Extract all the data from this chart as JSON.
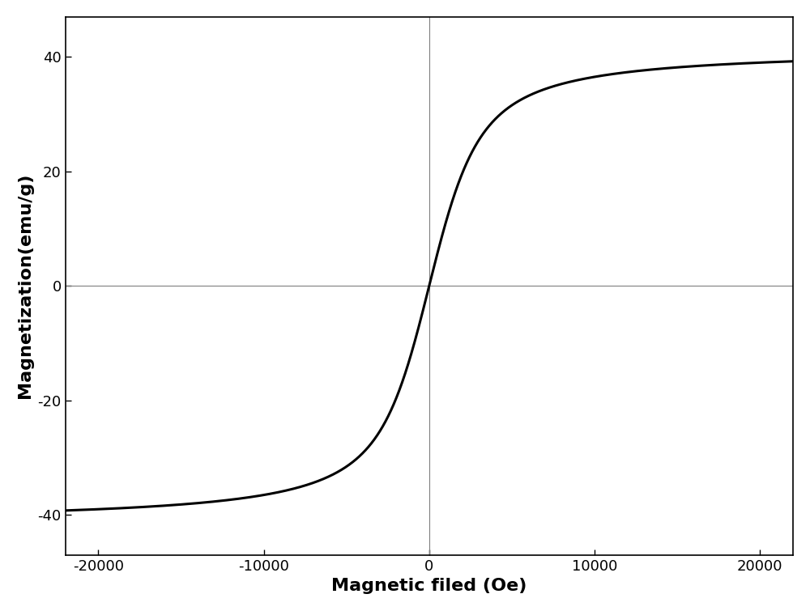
{
  "xlabel": "Magnetic filed (Oe)",
  "ylabel": "Magnetization(emu/g)",
  "xlim": [
    -22000,
    22000
  ],
  "ylim": [
    -47,
    47
  ],
  "xticks": [
    -20000,
    -10000,
    0,
    10000,
    20000
  ],
  "yticks": [
    -40,
    -20,
    0,
    20,
    40
  ],
  "saturation_magnetization": 41.5,
  "langevin_a": 1200.0,
  "line_color": "#000000",
  "line_width": 2.2,
  "background_color": "#ffffff",
  "spine_color": "#000000",
  "axisline_color": "#7f7f7f",
  "xlabel_fontsize": 16,
  "ylabel_fontsize": 16,
  "tick_fontsize": 13,
  "figsize": [
    10.0,
    7.55
  ],
  "dpi": 100
}
